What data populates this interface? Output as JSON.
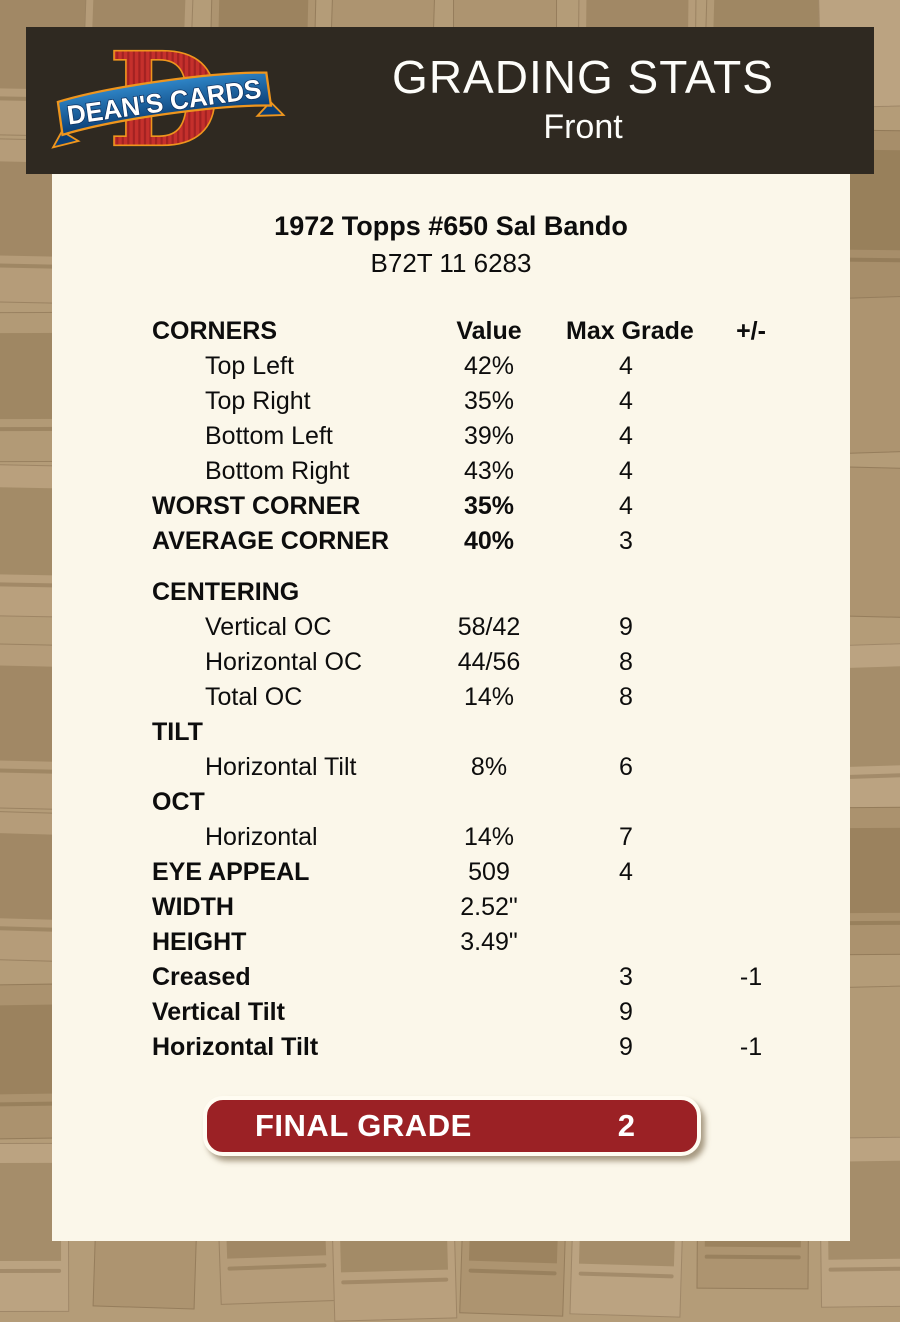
{
  "header": {
    "title": "GRADING STATS",
    "subtitle": "Front",
    "logo_letter": "D",
    "logo_text": "DEAN'S CARDS"
  },
  "card": {
    "title": "1972 Topps #650 Sal Bando",
    "id": "B72T 11 6283"
  },
  "table": {
    "rows": [
      {
        "label": "CORNERS",
        "value": "Value",
        "max": "Max Grade",
        "pm": "+/-",
        "style": "hdr"
      },
      {
        "label": "Top Left",
        "value": "42%",
        "max": "4",
        "pm": "",
        "style": "sub"
      },
      {
        "label": "Top Right",
        "value": "35%",
        "max": "4",
        "pm": "",
        "style": "sub"
      },
      {
        "label": "Bottom Left",
        "value": "39%",
        "max": "4",
        "pm": "",
        "style": "sub"
      },
      {
        "label": "Bottom Right",
        "value": "43%",
        "max": "4",
        "pm": "",
        "style": "sub"
      },
      {
        "label": "WORST CORNER",
        "value": "35%",
        "max": "4",
        "pm": "",
        "style": "bold",
        "value_bold": true
      },
      {
        "label": "AVERAGE CORNER",
        "value": "40%",
        "max": "3",
        "pm": "",
        "style": "bold",
        "value_bold": true
      },
      {
        "label": "CENTERING",
        "value": "",
        "max": "",
        "pm": "",
        "style": "bold",
        "gap_before": true
      },
      {
        "label": "Vertical OC",
        "value": "58/42",
        "max": "9",
        "pm": "",
        "style": "sub"
      },
      {
        "label": "Horizontal OC",
        "value": "44/56",
        "max": "8",
        "pm": "",
        "style": "sub"
      },
      {
        "label": "Total OC",
        "value": "14%",
        "max": "8",
        "pm": "",
        "style": "sub"
      },
      {
        "label": "TILT",
        "value": "",
        "max": "",
        "pm": "",
        "style": "bold"
      },
      {
        "label": "Horizontal Tilt",
        "value": "8%",
        "max": "6",
        "pm": "",
        "style": "sub"
      },
      {
        "label": "OCT",
        "value": "",
        "max": "",
        "pm": "",
        "style": "bold"
      },
      {
        "label": "Horizontal",
        "value": "14%",
        "max": "7",
        "pm": "",
        "style": "sub"
      },
      {
        "label": "EYE APPEAL",
        "value": "509",
        "max": "4",
        "pm": "",
        "style": "bold"
      },
      {
        "label": "WIDTH",
        "value": "2.52\"",
        "max": "",
        "pm": "",
        "style": "bold"
      },
      {
        "label": "HEIGHT",
        "value": "3.49\"",
        "max": "",
        "pm": "",
        "style": "bold"
      },
      {
        "label": "Creased",
        "value": "",
        "max": "3",
        "pm": "-1",
        "style": "bold"
      },
      {
        "label": "Vertical Tilt",
        "value": "",
        "max": "9",
        "pm": "",
        "style": "bold"
      },
      {
        "label": "Horizontal Tilt",
        "value": "",
        "max": "9",
        "pm": "-1",
        "style": "bold"
      }
    ]
  },
  "final_grade": {
    "label": "FINAL GRADE",
    "value": "2"
  },
  "colors": {
    "button_red": "#9b2125",
    "header_bg": "#2f2921",
    "panel_bg": "#fbf7ea",
    "page_tan": "#b49c78",
    "logo_red": "#c5302c",
    "logo_blue": "#1b6ab0",
    "logo_gold": "#ee951d"
  }
}
